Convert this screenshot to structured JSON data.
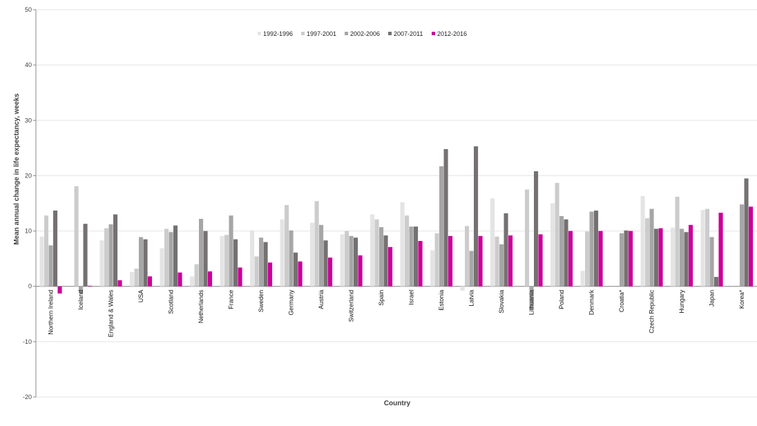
{
  "chart_data": {
    "type": "bar",
    "title": "",
    "xlabel": "Country",
    "ylabel": "Mean annual change in life expectancy, weeks",
    "ylim": [
      -20,
      50
    ],
    "yticks": [
      -20,
      -10,
      0,
      10,
      20,
      30,
      40,
      50
    ],
    "grid": true,
    "legend_position": "top-center",
    "categories": [
      "Northern Ireland",
      "Iceland",
      "England & Wales",
      "USA",
      "Scotland",
      "Netherlands",
      "France",
      "Sweden",
      "Germany",
      "Austria",
      "Switzerland",
      "Spain",
      "Israel",
      "Estonia",
      "Latvia",
      "Slovakia",
      "Lithuania",
      "Poland",
      "Denmark",
      "Croatia*",
      "Czech Republic",
      "Hungary",
      "Japan",
      "Korea*"
    ],
    "series": [
      {
        "name": "1992-1996",
        "color": "#e4e4e4",
        "values": [
          9.0,
          0,
          8.3,
          2.6,
          6.9,
          1.8,
          9.1,
          10.1,
          12.1,
          11.5,
          9.4,
          13.0,
          15.2,
          6.5,
          -0.8,
          15.9,
          0,
          15.0,
          2.8,
          0,
          16.3,
          10.6,
          13.8,
          0
        ]
      },
      {
        "name": "1997-2001",
        "color": "#cccccc",
        "values": [
          12.8,
          18.1,
          10.5,
          3.2,
          10.4,
          4.0,
          9.3,
          5.4,
          14.7,
          15.4,
          10.0,
          12.1,
          12.8,
          9.6,
          10.9,
          9.0,
          17.5,
          18.7,
          9.9,
          0,
          12.3,
          16.2,
          14.0,
          0
        ]
      },
      {
        "name": "2002-2006",
        "color": "#a6a6a6",
        "values": [
          7.4,
          -1.3,
          11.2,
          8.9,
          9.8,
          12.2,
          12.8,
          8.8,
          10.1,
          11.1,
          9.1,
          10.7,
          10.8,
          21.7,
          6.4,
          7.6,
          -4.2,
          12.7,
          13.5,
          9.6,
          14.0,
          10.4,
          8.9,
          14.8
        ]
      },
      {
        "name": "2007-2011",
        "color": "#757171",
        "values": [
          13.7,
          11.3,
          13.0,
          8.5,
          11.0,
          10.0,
          8.5,
          8.0,
          6.1,
          8.3,
          8.8,
          9.2,
          10.8,
          24.8,
          25.3,
          13.2,
          20.8,
          12.1,
          13.7,
          10.1,
          10.4,
          9.8,
          1.7,
          19.5
        ]
      },
      {
        "name": "2012-2016",
        "color": "#cc0099",
        "values": [
          -1.3,
          0.1,
          1.1,
          1.8,
          2.5,
          2.7,
          3.4,
          4.3,
          4.5,
          5.2,
          5.6,
          7.1,
          8.2,
          9.1,
          9.1,
          9.2,
          9.4,
          10.0,
          10.0,
          10.0,
          10.5,
          11.1,
          13.3,
          14.4
        ]
      }
    ]
  }
}
